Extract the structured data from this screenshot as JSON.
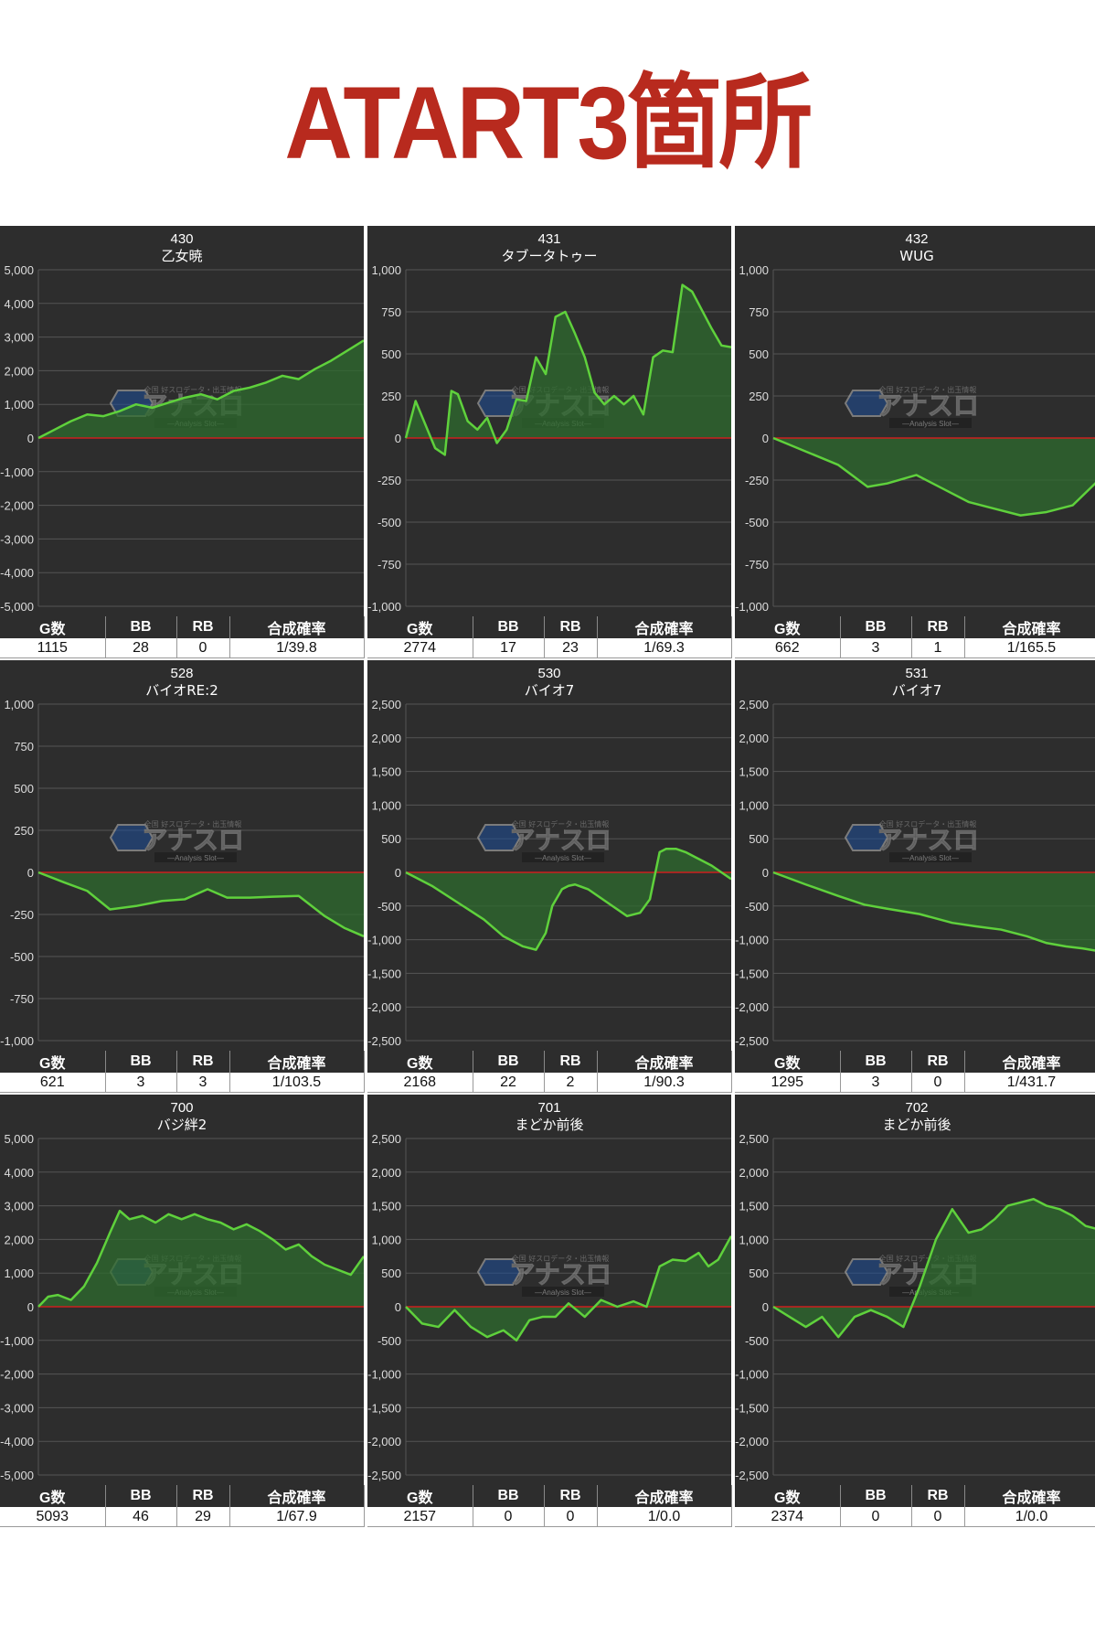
{
  "title": "ATART3箇所",
  "stat_headers": [
    "G数",
    "BB",
    "RB",
    "合成確率"
  ],
  "colors": {
    "background": "#2d2d2d",
    "line": "#5fd13c",
    "fill": "#2e6b2e",
    "zero_line": "#cc1f1f",
    "title": "#b82a1e"
  },
  "watermark": {
    "name": "アナスロ",
    "sub": "—Analysis Slot—",
    "tag": "全国 好スロデータ・出玉情報"
  },
  "chart_data": [
    {
      "type": "area",
      "number": "430",
      "machine": "乙女暁",
      "ylim": [
        -5000,
        5000
      ],
      "yticks": [
        "5,000",
        "4,000",
        "3,000",
        "2,000",
        "1,000",
        "0",
        "-1,000",
        "-2,000",
        "-3,000",
        "-4,000",
        "-5,000"
      ],
      "stats": {
        "g": "1115",
        "bb": "28",
        "rb": "0",
        "rate": "1/39.8"
      },
      "x": [
        0,
        5,
        10,
        15,
        20,
        25,
        30,
        35,
        40,
        45,
        50,
        55,
        60,
        65,
        70,
        75,
        80,
        85,
        90,
        95,
        100
      ],
      "y": [
        0,
        250,
        500,
        700,
        650,
        800,
        1000,
        900,
        1050,
        1200,
        1300,
        1150,
        1400,
        1500,
        1650,
        1850,
        1750,
        2050,
        2300,
        2600,
        2900
      ]
    },
    {
      "type": "area",
      "number": "431",
      "machine": "タブータトゥー",
      "ylim": [
        -1000,
        1000
      ],
      "yticks": [
        "1,000",
        "750",
        "500",
        "250",
        "0",
        "-250",
        "-500",
        "-750",
        "-1,000"
      ],
      "stats": {
        "g": "2774",
        "bb": "17",
        "rb": "23",
        "rate": "1/69.3"
      },
      "x": [
        0,
        3,
        6,
        9,
        12,
        14,
        16,
        19,
        22,
        25,
        28,
        31,
        34,
        37,
        40,
        43,
        46,
        49,
        52,
        55,
        58,
        61,
        64,
        67,
        70,
        73,
        76,
        79,
        82,
        85,
        88,
        91,
        94,
        97,
        100
      ],
      "y": [
        0,
        220,
        80,
        -60,
        -100,
        280,
        260,
        100,
        50,
        120,
        -30,
        50,
        230,
        220,
        480,
        380,
        720,
        750,
        620,
        480,
        270,
        200,
        250,
        200,
        250,
        140,
        480,
        520,
        510,
        910,
        870,
        760,
        650,
        550,
        540
      ]
    },
    {
      "type": "area",
      "number": "432",
      "machine": "WUG",
      "ylim": [
        -1000,
        1000
      ],
      "yticks": [
        "1,000",
        "750",
        "500",
        "250",
        "0",
        "-250",
        "-500",
        "-750",
        "-1,000"
      ],
      "stats": {
        "g": "662",
        "bb": "3",
        "rb": "1",
        "rate": "1/165.5"
      },
      "x": [
        0,
        10,
        20,
        29,
        35,
        44,
        52,
        60,
        68,
        76,
        84,
        92,
        100
      ],
      "y": [
        0,
        -80,
        -160,
        -290,
        -270,
        -220,
        -300,
        -380,
        -420,
        -460,
        -440,
        -400,
        -250
      ]
    },
    {
      "type": "area",
      "number": "528",
      "machine": "バイオRE:2",
      "ylim": [
        -1000,
        1000
      ],
      "yticks": [
        "1,000",
        "750",
        "500",
        "250",
        "0",
        "-250",
        "-500",
        "-750",
        "-1,000"
      ],
      "stats": {
        "g": "621",
        "bb": "3",
        "rb": "3",
        "rate": "1/103.5"
      },
      "x": [
        0,
        8,
        15,
        22,
        30,
        38,
        45,
        52,
        58,
        65,
        72,
        80,
        88,
        94,
        100
      ],
      "y": [
        0,
        -60,
        -110,
        -220,
        -200,
        -170,
        -160,
        -100,
        -150,
        -150,
        -145,
        -140,
        -260,
        -330,
        -380
      ]
    },
    {
      "type": "area",
      "number": "530",
      "machine": "バイオ7",
      "ylim": [
        -2500,
        2500
      ],
      "yticks": [
        "2,500",
        "2,000",
        "1,500",
        "1,000",
        "500",
        "0",
        "-500",
        "-1,000",
        "-1,500",
        "-2,000",
        "-2,500"
      ],
      "stats": {
        "g": "2168",
        "bb": "22",
        "rb": "2",
        "rate": "1/90.3"
      },
      "x": [
        0,
        8,
        16,
        24,
        30,
        36,
        40,
        43,
        45,
        48,
        50,
        52,
        56,
        62,
        68,
        72,
        75,
        78,
        80,
        83,
        86,
        90,
        94,
        97,
        100
      ],
      "y": [
        0,
        -200,
        -450,
        -700,
        -950,
        -1100,
        -1150,
        -900,
        -500,
        -250,
        -200,
        -180,
        -250,
        -450,
        -650,
        -600,
        -400,
        300,
        350,
        350,
        300,
        200,
        100,
        0,
        -100
      ]
    },
    {
      "type": "area",
      "number": "531",
      "machine": "バイオ7",
      "ylim": [
        -2500,
        2500
      ],
      "yticks": [
        "2,500",
        "2,000",
        "1,500",
        "1,000",
        "500",
        "0",
        "-500",
        "-1,000",
        "-1,500",
        "-2,000",
        "-2,500"
      ],
      "stats": {
        "g": "1295",
        "bb": "3",
        "rb": "0",
        "rate": "1/431.7"
      },
      "x": [
        0,
        10,
        20,
        28,
        35,
        45,
        55,
        62,
        70,
        78,
        84,
        90,
        95,
        100
      ],
      "y": [
        0,
        -180,
        -350,
        -480,
        -540,
        -620,
        -750,
        -800,
        -850,
        -950,
        -1050,
        -1100,
        -1130,
        -1170
      ]
    },
    {
      "type": "area",
      "number": "700",
      "machine": "バジ絆2",
      "ylim": [
        -5000,
        5000
      ],
      "yticks": [
        "5,000",
        "4,000",
        "3,000",
        "2,000",
        "1,000",
        "0",
        "-1,000",
        "-2,000",
        "-3,000",
        "-4,000",
        "-5,000"
      ],
      "stats": {
        "g": "5093",
        "bb": "46",
        "rb": "29",
        "rate": "1/67.9"
      },
      "x": [
        0,
        3,
        6,
        10,
        14,
        18,
        22,
        25,
        28,
        32,
        36,
        40,
        44,
        48,
        52,
        56,
        60,
        64,
        68,
        72,
        76,
        80,
        84,
        88,
        92,
        96,
        100
      ],
      "y": [
        0,
        300,
        350,
        200,
        600,
        1300,
        2200,
        2850,
        2600,
        2700,
        2500,
        2750,
        2600,
        2750,
        2600,
        2500,
        2300,
        2450,
        2250,
        2000,
        1700,
        1850,
        1500,
        1250,
        1100,
        950,
        1500
      ]
    },
    {
      "type": "area",
      "number": "701",
      "machine": "まどか前後",
      "ylim": [
        -2500,
        2500
      ],
      "yticks": [
        "2,500",
        "2,000",
        "1,500",
        "1,000",
        "500",
        "0",
        "-500",
        "-1,000",
        "-1,500",
        "-2,000",
        "-2,500"
      ],
      "stats": {
        "g": "2157",
        "bb": "0",
        "rb": "0",
        "rate": "1/0.0"
      },
      "x": [
        0,
        5,
        10,
        15,
        20,
        25,
        30,
        34,
        38,
        42,
        46,
        50,
        55,
        60,
        65,
        70,
        74,
        78,
        82,
        86,
        90,
        93,
        96,
        100
      ],
      "y": [
        0,
        -250,
        -300,
        -50,
        -300,
        -450,
        -350,
        -500,
        -200,
        -150,
        -150,
        50,
        -150,
        100,
        0,
        80,
        0,
        600,
        700,
        680,
        800,
        600,
        700,
        1050
      ]
    },
    {
      "type": "area",
      "number": "702",
      "machine": "まどか前後",
      "ylim": [
        -2500,
        2500
      ],
      "yticks": [
        "2,500",
        "2,000",
        "1,500",
        "1,000",
        "500",
        "0",
        "-500",
        "-1,000",
        "-1,500",
        "-2,000",
        "-2,500"
      ],
      "stats": {
        "g": "2374",
        "bb": "0",
        "rb": "0",
        "rate": "1/0.0"
      },
      "x": [
        0,
        5,
        10,
        15,
        20,
        25,
        30,
        35,
        40,
        45,
        50,
        55,
        60,
        64,
        68,
        72,
        76,
        80,
        84,
        88,
        92,
        96,
        100
      ],
      "y": [
        0,
        -150,
        -300,
        -150,
        -450,
        -150,
        -50,
        -150,
        -300,
        300,
        1000,
        1450,
        1100,
        1150,
        1300,
        1500,
        1550,
        1600,
        1500,
        1450,
        1350,
        1200,
        1150
      ]
    }
  ]
}
